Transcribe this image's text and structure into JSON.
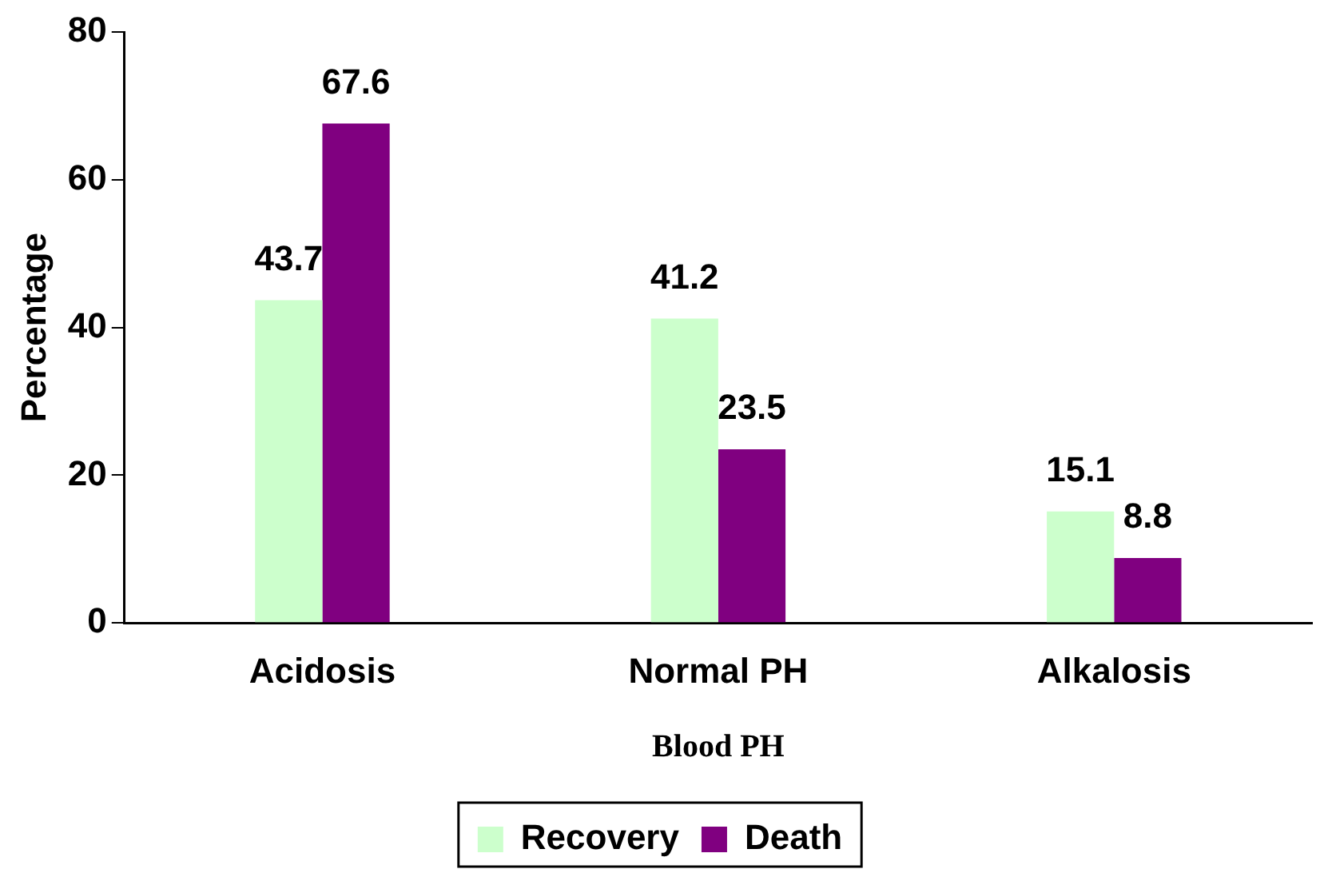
{
  "chart_data": {
    "type": "bar",
    "xlabel": "Blood PH",
    "ylabel": "Percentage",
    "categories": [
      "Acidosis",
      "Normal PH",
      "Alkalosis"
    ],
    "series": [
      {
        "name": "Recovery",
        "color": "#ccffcc",
        "values": [
          43.7,
          41.2,
          15.1
        ]
      },
      {
        "name": "Death",
        "color": "#800080",
        "values": [
          67.6,
          23.5,
          8.8
        ]
      }
    ],
    "ylim": [
      0,
      80
    ],
    "yticks": [
      0,
      20,
      40,
      60,
      80
    ],
    "grid": false,
    "legend": "bottom",
    "data_labels": true
  }
}
